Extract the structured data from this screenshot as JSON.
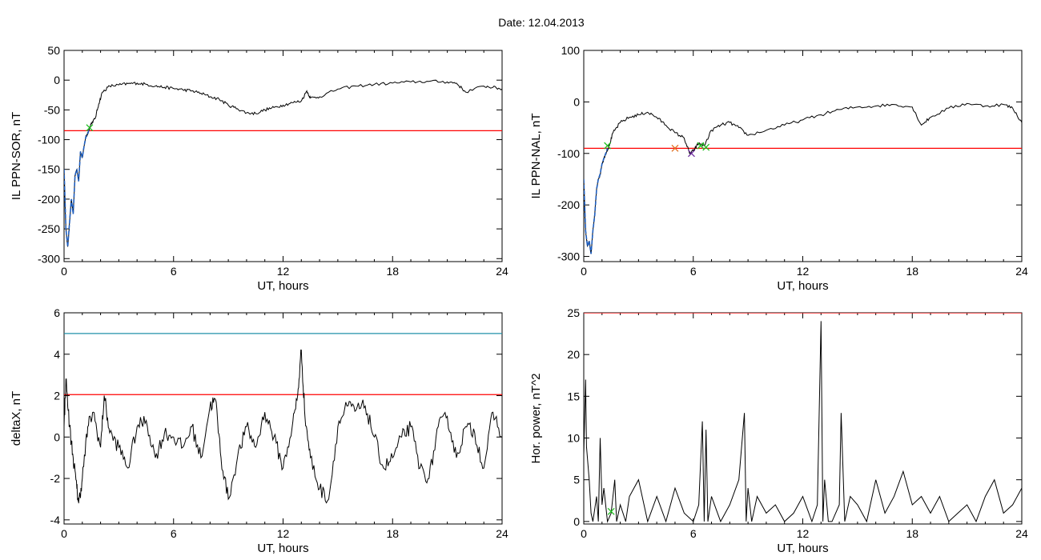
{
  "title": "Date:  12.04.2013",
  "chart_data": [
    {
      "type": "line",
      "ylabel": "IL PPN-SOR, nT",
      "xlabel": "UT, hours",
      "xlim": [
        0,
        24
      ],
      "ylim": [
        -305,
        50
      ],
      "xticks": [
        "0",
        "6",
        "12",
        "18",
        "24"
      ],
      "yticks": [
        {
          "value": 50,
          "label": "50"
        },
        {
          "value": 0,
          "label": "0"
        },
        {
          "value": -50,
          "label": "-50"
        },
        {
          "value": -100,
          "label": "-100"
        },
        {
          "value": -150,
          "label": "-150"
        },
        {
          "value": -200,
          "label": "-200"
        },
        {
          "value": -250,
          "label": "-250"
        },
        {
          "value": -300,
          "label": "-300"
        }
      ],
      "series": [
        {
          "color": "#000000",
          "jitter": 2.5,
          "x": [
            0,
            0.1,
            0.2,
            0.3,
            0.4,
            0.5,
            0.6,
            0.7,
            0.8,
            0.9,
            1.0,
            1.1,
            1.2,
            1.3,
            1.4,
            1.5,
            1.7,
            1.9,
            2.1,
            2.5,
            3,
            3.5,
            4,
            4.5,
            5,
            5.5,
            6,
            6.5,
            7,
            7.5,
            8,
            8.5,
            9,
            9.5,
            10,
            10.5,
            11,
            11.5,
            12,
            12.5,
            13,
            13.3,
            13.5,
            14,
            15,
            16,
            17,
            18,
            19,
            20,
            21,
            21.5,
            22,
            23,
            23.5,
            24
          ],
          "y": [
            -150,
            -250,
            -280,
            -240,
            -200,
            -225,
            -160,
            -150,
            -170,
            -120,
            -130,
            -110,
            -95,
            -90,
            -80,
            -72,
            -65,
            -40,
            -20,
            -10,
            -8,
            -6,
            -5,
            -7,
            -10,
            -12,
            -14,
            -16,
            -18,
            -22,
            -28,
            -32,
            -42,
            -48,
            -55,
            -56,
            -50,
            -46,
            -42,
            -38,
            -35,
            -18,
            -30,
            -28,
            -15,
            -10,
            -7,
            -5,
            -3,
            -2,
            -3,
            -5,
            -20,
            -10,
            -12,
            -15
          ]
        },
        {
          "color": "#1f5fc0",
          "jitter": 0,
          "x": [
            0,
            0.1,
            0.2,
            0.3,
            0.4,
            0.5,
            0.6,
            0.7,
            0.8,
            0.9,
            1.0,
            1.1,
            1.2,
            1.3,
            1.4
          ],
          "y": [
            -150,
            -250,
            -280,
            -240,
            -200,
            -225,
            -160,
            -150,
            -170,
            -120,
            -130,
            -110,
            -95,
            -90,
            -80
          ]
        }
      ],
      "hlines": [
        {
          "y": -85,
          "color": "#ff0000"
        }
      ],
      "markers": [
        {
          "x": 1.4,
          "y": -80,
          "color": "#22c022"
        }
      ]
    },
    {
      "type": "line",
      "ylabel": "IL PPN-NAL, nT",
      "xlabel": "UT, hours",
      "xlim": [
        0,
        24
      ],
      "ylim": [
        -310,
        100
      ],
      "xticks": [
        "0",
        "6",
        "12",
        "18",
        "24"
      ],
      "yticks": [
        {
          "value": 100,
          "label": "100"
        },
        {
          "value": 0,
          "label": "0"
        },
        {
          "value": -100,
          "label": "-100"
        },
        {
          "value": -200,
          "label": "-200"
        },
        {
          "value": -300,
          "label": "-300"
        }
      ],
      "series": [
        {
          "color": "#000000",
          "jitter": 3,
          "x": [
            0,
            0.1,
            0.2,
            0.3,
            0.4,
            0.5,
            0.6,
            0.7,
            0.8,
            0.9,
            1.0,
            1.1,
            1.2,
            1.4,
            1.6,
            2.0,
            2.5,
            3,
            3.5,
            4,
            4.5,
            5,
            5.5,
            5.8,
            6.0,
            6.3,
            6.6,
            7,
            7.5,
            8,
            8.5,
            9,
            10,
            11,
            12,
            13,
            14,
            15,
            16,
            17,
            18,
            18.5,
            19,
            20,
            21,
            22,
            23,
            23.5,
            24
          ],
          "y": [
            -150,
            -250,
            -280,
            -270,
            -295,
            -250,
            -220,
            -170,
            -150,
            -140,
            -120,
            -110,
            -100,
            -85,
            -60,
            -40,
            -30,
            -25,
            -20,
            -30,
            -45,
            -60,
            -70,
            -100,
            -95,
            -80,
            -85,
            -55,
            -45,
            -40,
            -50,
            -65,
            -55,
            -45,
            -35,
            -25,
            -15,
            -10,
            -8,
            -5,
            -10,
            -45,
            -30,
            -12,
            -3,
            -8,
            -5,
            -12,
            -40
          ]
        },
        {
          "color": "#1f5fc0",
          "jitter": 0,
          "x": [
            0,
            0.1,
            0.2,
            0.3,
            0.4,
            0.5,
            0.6,
            0.7,
            0.8,
            0.9,
            1.0,
            1.1,
            1.2,
            1.3
          ],
          "y": [
            -150,
            -250,
            -280,
            -270,
            -295,
            -250,
            -220,
            -170,
            -150,
            -140,
            -120,
            -110,
            -100,
            -90
          ]
        }
      ],
      "hlines": [
        {
          "y": -90,
          "color": "#ff0000"
        }
      ],
      "markers": [
        {
          "x": 1.3,
          "y": -85,
          "color": "#22c022"
        },
        {
          "x": 5.0,
          "y": -90,
          "color": "#e07020"
        },
        {
          "x": 5.9,
          "y": -100,
          "color": "#7030a0"
        },
        {
          "x": 6.4,
          "y": -85,
          "color": "#22c022"
        },
        {
          "x": 6.7,
          "y": -88,
          "color": "#22c022"
        }
      ]
    },
    {
      "type": "line",
      "ylabel": "deltaX, nT",
      "xlabel": "UT, hours",
      "xlim": [
        0,
        24
      ],
      "ylim": [
        -4.2,
        6
      ],
      "xticks": [
        "0",
        "6",
        "12",
        "18",
        "24"
      ],
      "yticks": [
        {
          "value": 6,
          "label": "6"
        },
        {
          "value": 4,
          "label": "4"
        },
        {
          "value": 2,
          "label": "2"
        },
        {
          "value": 0,
          "label": "0"
        },
        {
          "value": -2,
          "label": "-2"
        },
        {
          "value": -4,
          "label": "-4"
        }
      ],
      "series": [
        {
          "color": "#000000",
          "jitter": 0.35,
          "x": [
            0,
            0.1,
            0.3,
            0.5,
            0.7,
            0.8,
            1.0,
            1.3,
            1.6,
            2.0,
            2.2,
            2.5,
            3,
            3.5,
            4,
            4.5,
            5,
            5.5,
            6,
            6.5,
            7,
            7.5,
            8,
            8.3,
            8.6,
            9,
            9.5,
            10,
            10.5,
            11,
            11.5,
            12,
            12.5,
            12.8,
            13.0,
            13.2,
            13.5,
            14,
            14.5,
            15,
            15.5,
            16,
            16.5,
            17,
            17.5,
            18,
            18.5,
            19,
            19.5,
            20,
            20.5,
            21,
            21.5,
            22,
            22.5,
            23,
            23.5,
            24
          ],
          "y": [
            0.5,
            2.8,
            0.5,
            -1.0,
            -2.5,
            -3.2,
            -2.0,
            0.5,
            1.2,
            -0.5,
            2.0,
            0.2,
            -0.5,
            -1.5,
            0.5,
            0.8,
            -1.0,
            0.2,
            0.0,
            -0.5,
            0.5,
            -1.0,
            1.5,
            1.8,
            -1.0,
            -3.0,
            -1.0,
            0.5,
            -0.5,
            1.2,
            0.0,
            -1.5,
            0.5,
            2.0,
            4.2,
            1.0,
            -1.0,
            -2.5,
            -3.0,
            0.5,
            1.5,
            1.3,
            1.5,
            0.0,
            -1.5,
            -1.0,
            0.0,
            0.5,
            -1.5,
            -2.0,
            0.5,
            1.0,
            -1.0,
            0.5,
            0.2,
            -1.5,
            1.2,
            0.0
          ]
        }
      ],
      "hlines": [
        {
          "y": 5,
          "color": "#2090a8"
        },
        {
          "y": 2.05,
          "color": "#ff0000"
        }
      ],
      "markers": []
    },
    {
      "type": "line",
      "ylabel": "Hor. power, nT^2",
      "xlabel": "UT, hours",
      "xlim": [
        0,
        24
      ],
      "ylim": [
        -0.3,
        25
      ],
      "xticks": [
        "0",
        "6",
        "12",
        "18",
        "24"
      ],
      "yticks": [
        {
          "value": 25,
          "label": "25"
        },
        {
          "value": 20,
          "label": "20"
        },
        {
          "value": 15,
          "label": "15"
        },
        {
          "value": 10,
          "label": "10"
        },
        {
          "value": 5,
          "label": "5"
        },
        {
          "value": 0,
          "label": "0"
        }
      ],
      "series": [
        {
          "color": "#000000",
          "jitter": 0,
          "x": [
            0,
            0.1,
            0.15,
            0.3,
            0.4,
            0.5,
            0.7,
            0.8,
            0.9,
            1.0,
            1.1,
            1.3,
            1.5,
            1.7,
            1.8,
            2.0,
            2.3,
            2.5,
            3,
            3.5,
            4,
            4.5,
            5,
            5.5,
            6,
            6.3,
            6.5,
            6.6,
            6.7,
            6.8,
            7,
            7.5,
            8,
            8.5,
            8.8,
            8.9,
            9.0,
            9.2,
            9.5,
            10,
            10.5,
            11,
            11.5,
            12,
            12.5,
            12.8,
            13.0,
            13.1,
            13.2,
            13.4,
            13.6,
            14.0,
            14.1,
            14.3,
            14.6,
            15,
            15.5,
            16,
            16.5,
            17,
            17.5,
            18,
            18.5,
            19,
            19.5,
            20,
            20.5,
            21,
            21.5,
            22,
            22.5,
            23,
            23.5,
            24
          ],
          "y": [
            8,
            17,
            9,
            5,
            1,
            0,
            3,
            0,
            10,
            2,
            4,
            0,
            1,
            5,
            0,
            2,
            0,
            3,
            5,
            0,
            3,
            0,
            4,
            1,
            0,
            2,
            12,
            0,
            11,
            0,
            3,
            0,
            2,
            5,
            13,
            0,
            4,
            0,
            3,
            1,
            2,
            0,
            1,
            3,
            0,
            2,
            24,
            0,
            5,
            0,
            0,
            2,
            13,
            0,
            3,
            2,
            0,
            5,
            1,
            3,
            6,
            2,
            3,
            1,
            3,
            0,
            1,
            2,
            0,
            3,
            5,
            1,
            2,
            4
          ]
        }
      ],
      "hlines": [
        {
          "y": 25,
          "color": "#ff0000"
        }
      ],
      "markers": [
        {
          "x": 1.5,
          "y": 1.2,
          "color": "#22c022"
        }
      ]
    }
  ]
}
